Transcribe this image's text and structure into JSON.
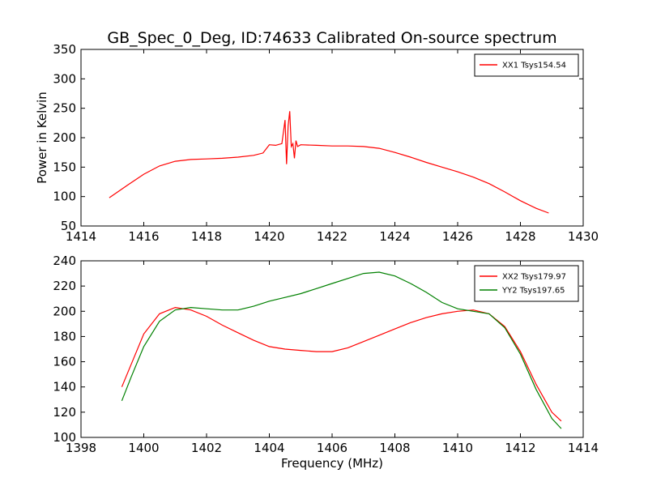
{
  "figure": {
    "title": "GB_Spec_0_Deg, ID:74633 Calibrated On-source spectrum"
  },
  "chart_data": [
    {
      "type": "line",
      "ylabel": "Power in Kelvin",
      "xlabel": "",
      "xlim": [
        1414,
        1430
      ],
      "ylim": [
        50,
        350
      ],
      "xticks": [
        "1414",
        "1416",
        "1418",
        "1420",
        "1422",
        "1424",
        "1426",
        "1428",
        "1430"
      ],
      "yticks": [
        "50",
        "100",
        "150",
        "200",
        "250",
        "300",
        "350"
      ],
      "legend_position": "top-right",
      "series": [
        {
          "name": "XX1 Tsys154.54",
          "color": "#ff0000",
          "x": [
            1414.9,
            1415.5,
            1416.0,
            1416.5,
            1417.0,
            1417.5,
            1418.0,
            1418.5,
            1419.0,
            1419.5,
            1419.8,
            1420.0,
            1420.2,
            1420.4,
            1420.5,
            1420.55,
            1420.6,
            1420.65,
            1420.7,
            1420.75,
            1420.8,
            1420.85,
            1420.9,
            1421.0,
            1421.5,
            1422.0,
            1422.5,
            1423.0,
            1423.5,
            1424.0,
            1424.5,
            1425.0,
            1425.5,
            1426.0,
            1426.5,
            1427.0,
            1427.5,
            1428.0,
            1428.5,
            1428.9
          ],
          "y": [
            98,
            120,
            138,
            152,
            160,
            163,
            164,
            165,
            167,
            170,
            174,
            188,
            187,
            190,
            230,
            155,
            220,
            245,
            185,
            190,
            165,
            195,
            185,
            188,
            187,
            186,
            186,
            185,
            182,
            175,
            167,
            158,
            150,
            142,
            133,
            122,
            108,
            93,
            80,
            72
          ]
        }
      ]
    },
    {
      "type": "line",
      "ylabel": "",
      "xlabel": "Frequency (MHz)",
      "xlim": [
        1398,
        1414
      ],
      "ylim": [
        100,
        240
      ],
      "xticks": [
        "1398",
        "1400",
        "1402",
        "1404",
        "1406",
        "1408",
        "1410",
        "1412",
        "1414"
      ],
      "yticks": [
        "100",
        "120",
        "140",
        "160",
        "180",
        "200",
        "220",
        "240"
      ],
      "legend_position": "top-right",
      "series": [
        {
          "name": "XX2 Tsys179.97",
          "color": "#ff0000",
          "x": [
            1399.3,
            1399.6,
            1400.0,
            1400.5,
            1401.0,
            1401.5,
            1402.0,
            1402.5,
            1403.0,
            1403.5,
            1404.0,
            1404.5,
            1405.0,
            1405.5,
            1406.0,
            1406.5,
            1407.0,
            1407.5,
            1408.0,
            1408.5,
            1409.0,
            1409.5,
            1410.0,
            1410.5,
            1411.0,
            1411.5,
            1412.0,
            1412.5,
            1413.0,
            1413.3
          ],
          "y": [
            140,
            158,
            182,
            198,
            203,
            201,
            196,
            189,
            183,
            177,
            172,
            170,
            169,
            168,
            168,
            171,
            176,
            181,
            186,
            191,
            195,
            198,
            200,
            201,
            198,
            188,
            168,
            142,
            120,
            113
          ]
        },
        {
          "name": "YY2 Tsys197.65",
          "color": "#008000",
          "x": [
            1399.3,
            1399.6,
            1400.0,
            1400.5,
            1401.0,
            1401.5,
            1402.0,
            1402.5,
            1403.0,
            1403.5,
            1404.0,
            1404.5,
            1405.0,
            1405.5,
            1406.0,
            1406.5,
            1407.0,
            1407.5,
            1408.0,
            1408.5,
            1409.0,
            1409.5,
            1410.0,
            1410.5,
            1411.0,
            1411.5,
            1412.0,
            1412.5,
            1413.0,
            1413.3
          ],
          "y": [
            129,
            148,
            172,
            192,
            201,
            203,
            202,
            201,
            201,
            204,
            208,
            211,
            214,
            218,
            222,
            226,
            230,
            231,
            228,
            222,
            215,
            207,
            202,
            200,
            198,
            187,
            166,
            138,
            115,
            107
          ]
        }
      ]
    }
  ]
}
